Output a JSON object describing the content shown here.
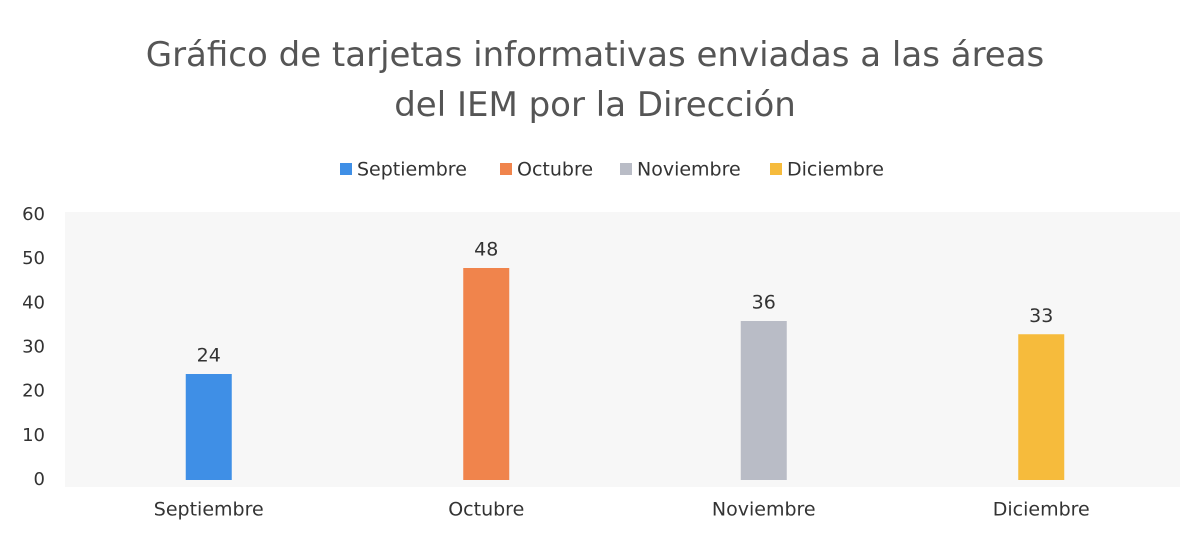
{
  "chart_data": {
    "type": "bar",
    "title": "Gráfico de tarjetas informativas enviadas a las áreas del IEM por la Dirección",
    "categories": [
      "Septiembre",
      "Octubre",
      "Noviembre",
      "Diciembre"
    ],
    "values": [
      24,
      48,
      36,
      33
    ],
    "colors": [
      "#3f8fe6",
      "#f0844c",
      "#b9bcc6",
      "#f6bb3c"
    ],
    "ylim": [
      0,
      60
    ],
    "yticks": [
      0,
      10,
      20,
      30,
      40,
      50,
      60
    ],
    "grid": false,
    "legend": "top"
  }
}
